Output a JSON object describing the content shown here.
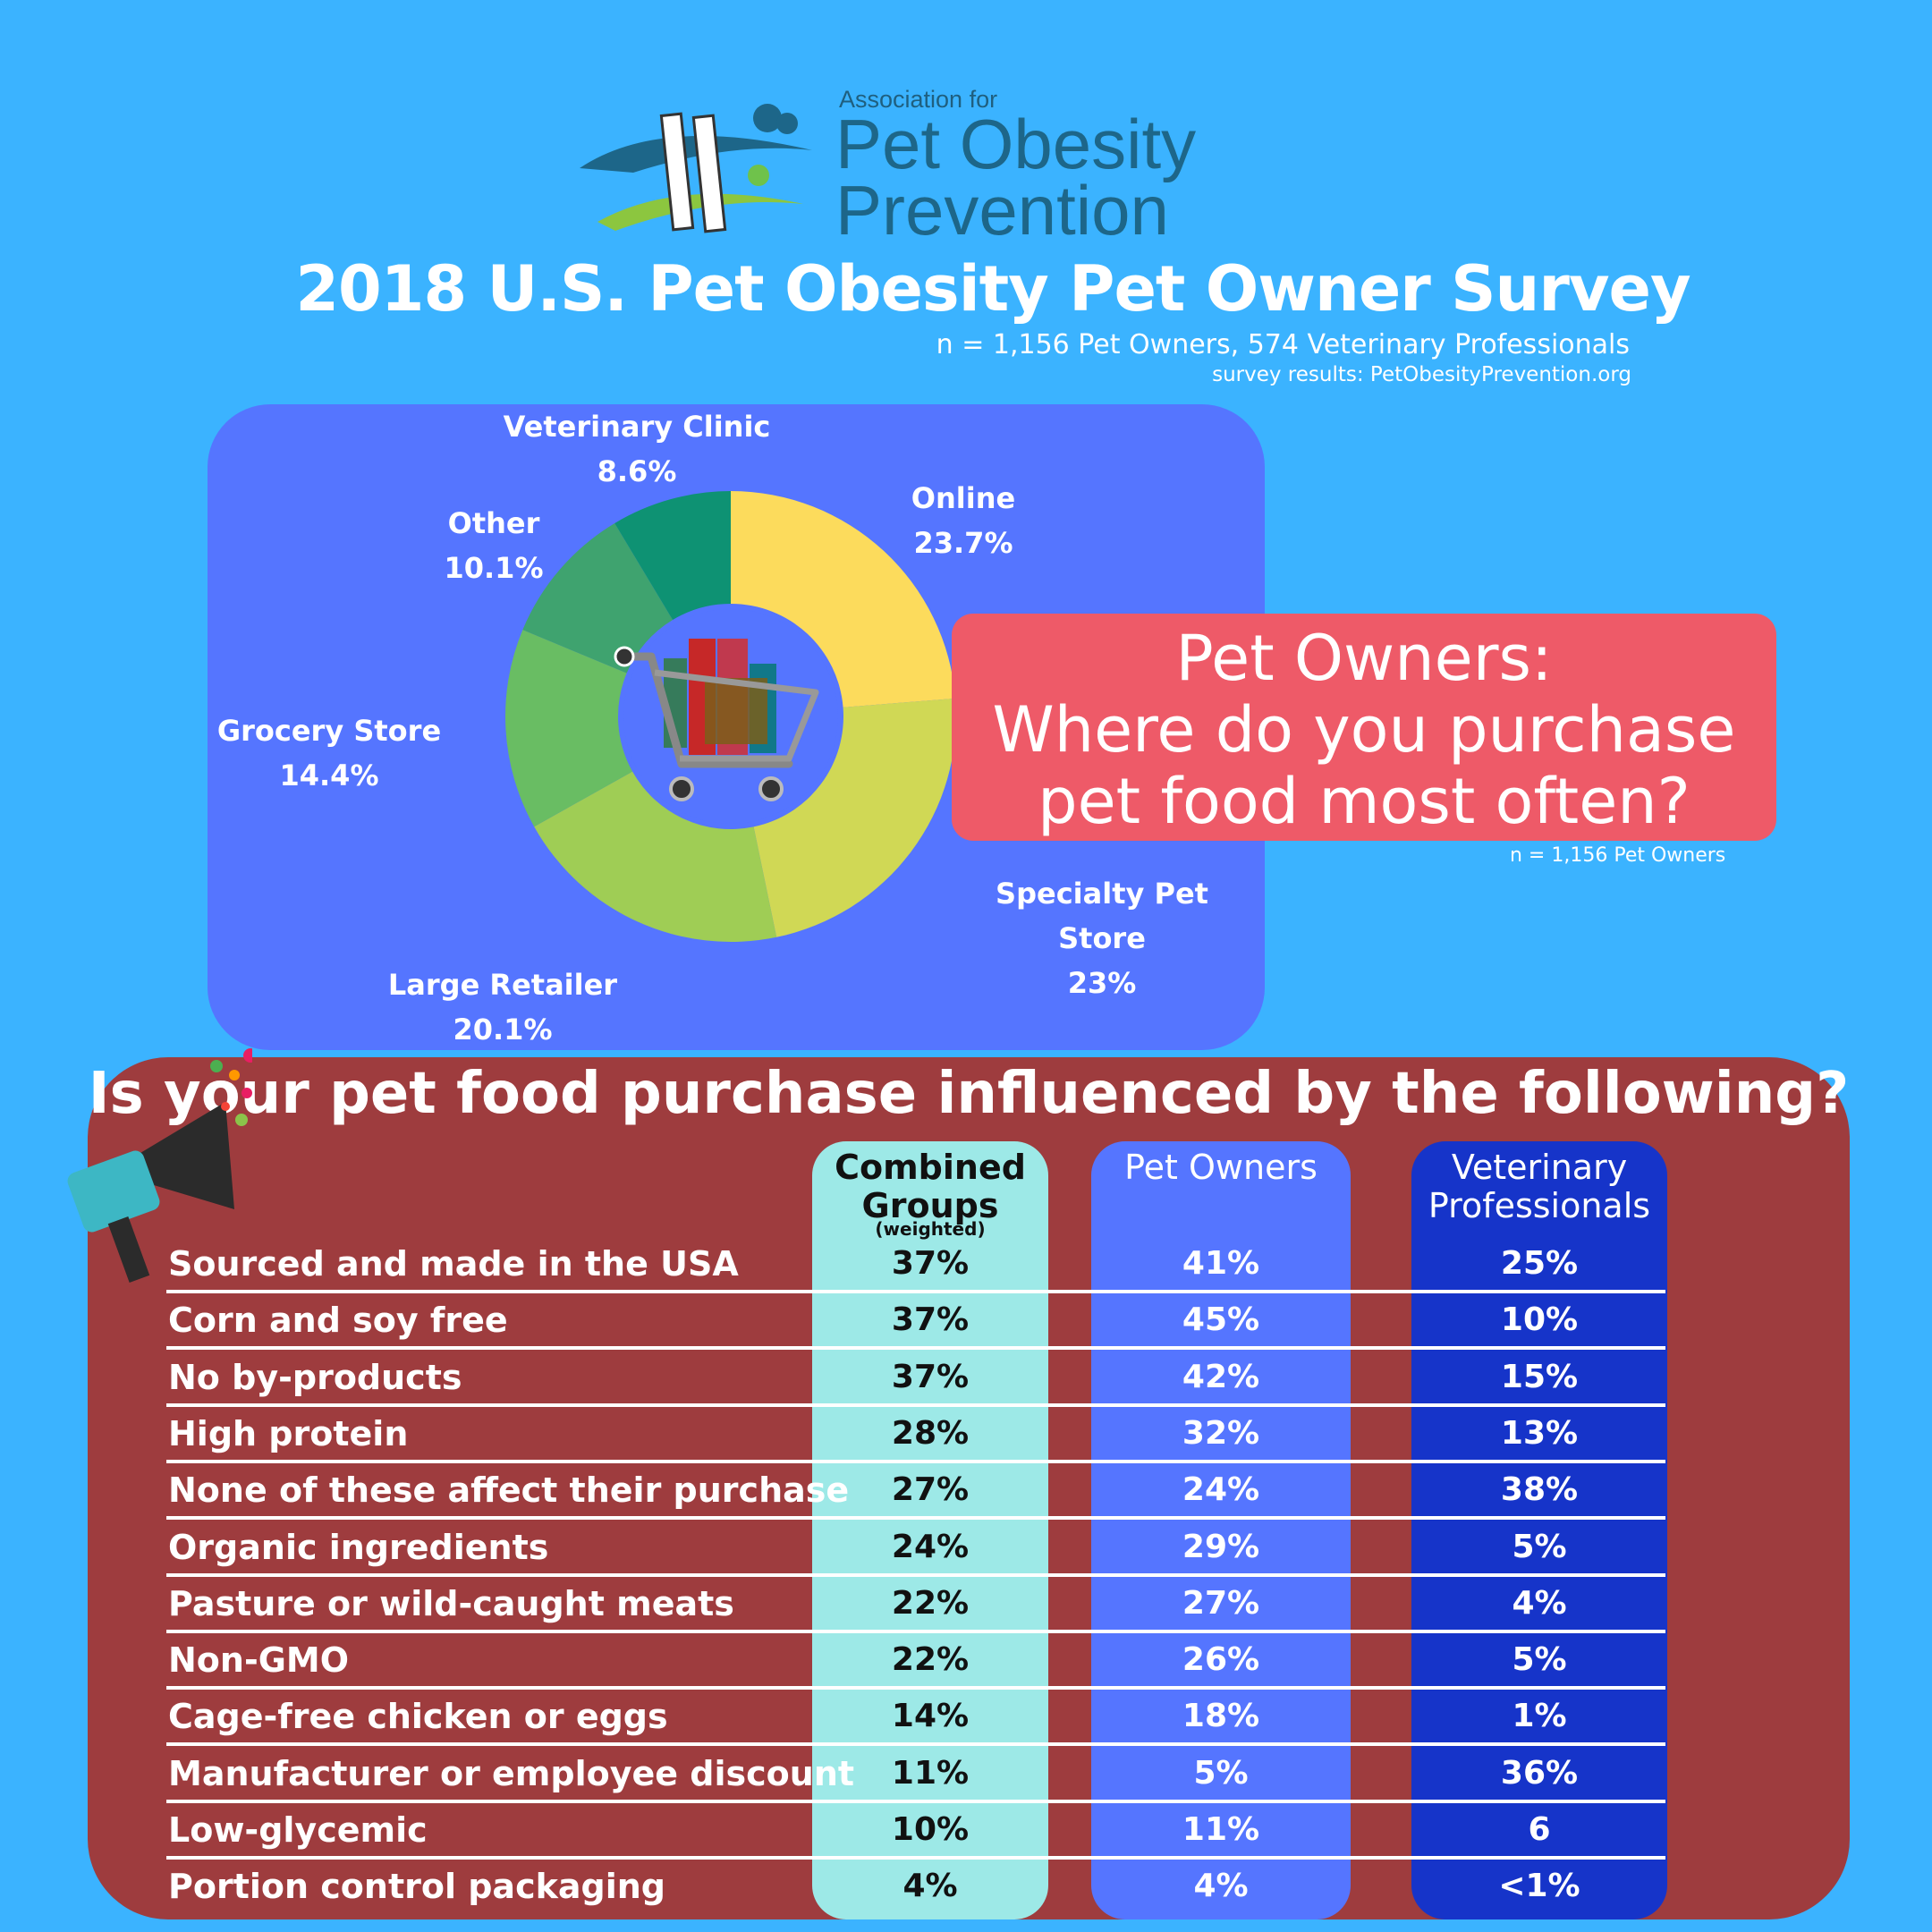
{
  "logo": {
    "line_small": "Association for",
    "line1": "Pet Obesity",
    "line2": "Prevention"
  },
  "header": {
    "title": "2018 U.S. Pet Obesity Pet Owner Survey",
    "sample": "n = 1,156 Pet Owners, 574 Veterinary Professionals",
    "source": "survey results: PetObesityPrevention.org"
  },
  "question": {
    "line1": "Pet Owners:",
    "line2": "Where do you purchase",
    "line3": "pet food most often?",
    "n": "n = 1,156 Pet Owners"
  },
  "colors": {
    "background": "#3bb3ff",
    "chart_panel": "#5575ff",
    "callout": "#ee5a68",
    "table_panel": "#9e3c3e",
    "combined": "#9de9e7",
    "owners": "#5575ff",
    "vets": "#1634c9"
  },
  "chart_data": [
    {
      "type": "pie",
      "donut": true,
      "center_icon": "shopping-cart-icon",
      "slices": [
        {
          "label": "Online",
          "value": 23.7,
          "display": "23.7%",
          "color": "#fcdb5c"
        },
        {
          "label": "Specialty Pet Store",
          "value": 23,
          "display": "23%",
          "color": "#d0d855"
        },
        {
          "label": "Large Retailer",
          "value": 20.1,
          "display": "20.1%",
          "color": "#9fcd55"
        },
        {
          "label": "Grocery Store",
          "value": 14.4,
          "display": "14.4%",
          "color": "#69bd63"
        },
        {
          "label": "Other",
          "value": 10.1,
          "display": "10.1%",
          "color": "#3fa36f"
        },
        {
          "label": "Veterinary Clinic",
          "value": 8.6,
          "display": "8.6%",
          "color": "#0e9273"
        }
      ]
    },
    {
      "type": "table",
      "title": "Is your pet food purchase influenced by the following?",
      "columns": [
        {
          "name": "Combined Groups",
          "sub": "(weighted)"
        },
        {
          "name": "Pet Owners"
        },
        {
          "name": "Veterinary Professionals"
        }
      ],
      "rows": [
        {
          "label": "Sourced and made in the USA",
          "combined": "37%",
          "owners": "41%",
          "vets": "25%"
        },
        {
          "label": "Corn and soy free",
          "combined": "37%",
          "owners": "45%",
          "vets": "10%"
        },
        {
          "label": "No by-products",
          "combined": "37%",
          "owners": "42%",
          "vets": "15%"
        },
        {
          "label": "High protein",
          "combined": "28%",
          "owners": "32%",
          "vets": "13%"
        },
        {
          "label": "None of these affect their purchase",
          "combined": "27%",
          "owners": "24%",
          "vets": "38%"
        },
        {
          "label": "Organic ingredients",
          "combined": "24%",
          "owners": "29%",
          "vets": "5%"
        },
        {
          "label": "Pasture or wild-caught meats",
          "combined": "22%",
          "owners": "27%",
          "vets": "4%"
        },
        {
          "label": "Non-GMO",
          "combined": "22%",
          "owners": "26%",
          "vets": "5%"
        },
        {
          "label": "Cage-free chicken or eggs",
          "combined": "14%",
          "owners": "18%",
          "vets": "1%"
        },
        {
          "label": "Manufacturer or employee discount",
          "combined": "11%",
          "owners": "5%",
          "vets": "36%"
        },
        {
          "label": "Low-glycemic",
          "combined": "10%",
          "owners": "11%",
          "vets": "6"
        },
        {
          "label": "Portion control packaging",
          "combined": "4%",
          "owners": "4%",
          "vets": "<1%"
        }
      ]
    }
  ]
}
